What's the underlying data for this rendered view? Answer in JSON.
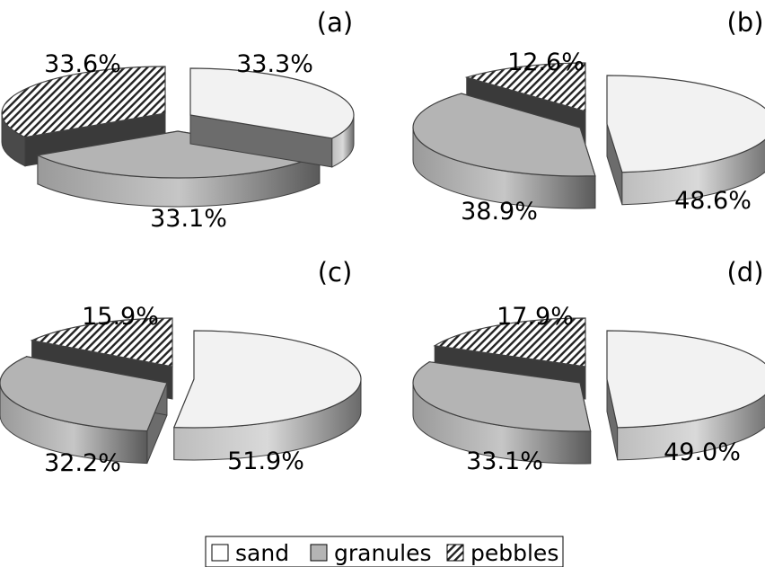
{
  "chart_data": [
    {
      "type": "pie",
      "panel": "(a)",
      "slices": [
        {
          "name": "sand",
          "value": 33.3,
          "label": "33.3%"
        },
        {
          "name": "granules",
          "value": 33.1,
          "label": "33.1%"
        },
        {
          "name": "pebbles",
          "value": 33.6,
          "label": "33.6%"
        }
      ]
    },
    {
      "type": "pie",
      "panel": "(b)",
      "slices": [
        {
          "name": "sand",
          "value": 48.6,
          "label": "48.6%"
        },
        {
          "name": "granules",
          "value": 38.9,
          "label": "38.9%"
        },
        {
          "name": "pebbles",
          "value": 12.6,
          "label": "12.6%"
        }
      ]
    },
    {
      "type": "pie",
      "panel": "(c)",
      "slices": [
        {
          "name": "sand",
          "value": 51.9,
          "label": "51.9%"
        },
        {
          "name": "granules",
          "value": 32.2,
          "label": "32.2%"
        },
        {
          "name": "pebbles",
          "value": 15.9,
          "label": "15.9%"
        }
      ]
    },
    {
      "type": "pie",
      "panel": "(d)",
      "slices": [
        {
          "name": "sand",
          "value": 49.0,
          "label": "49.0%"
        },
        {
          "name": "granules",
          "value": 33.1,
          "label": "33.1%"
        },
        {
          "name": "pebbles",
          "value": 17.9,
          "label": "17.9%"
        }
      ]
    }
  ],
  "legend": {
    "items": [
      {
        "name": "sand",
        "label": "sand",
        "pattern": "white"
      },
      {
        "name": "granules",
        "label": "granules",
        "pattern": "gray"
      },
      {
        "name": "pebbles",
        "label": "pebbles",
        "pattern": "hatch"
      }
    ]
  },
  "colors": {
    "sand": "#f2f2f2",
    "granules": "#b4b4b4",
    "pebbles_stroke": "#222222",
    "outline": "#404040"
  }
}
